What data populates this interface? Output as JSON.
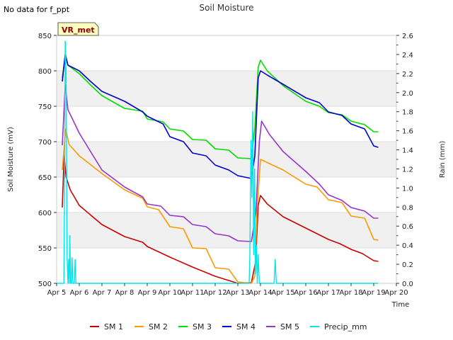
{
  "note": "No data for f_ppt",
  "chart_data": {
    "type": "line",
    "title": "Soil Moisture",
    "xlabel": "Time",
    "ylabel": "Soil Moisture (mV)",
    "y2label": "Rain (mm)",
    "tag": "VR_met",
    "x_ticks": [
      "Apr 5",
      "Apr 6",
      "Apr 7",
      "Apr 8",
      "Apr 9",
      "Apr 10",
      "Apr 11",
      "Apr 12",
      "Apr 13",
      "Apr 14",
      "Apr 15",
      "Apr 16",
      "Apr 17",
      "Apr 18",
      "Apr 19",
      "Apr 20"
    ],
    "xlim": [
      5,
      20
    ],
    "ylim": [
      500,
      850
    ],
    "y_ticks": [
      500,
      550,
      600,
      650,
      700,
      750,
      800,
      850
    ],
    "y2lim": [
      0,
      2.6
    ],
    "y2_ticks": [
      0.0,
      0.2,
      0.4,
      0.6,
      0.8,
      1.0,
      1.2,
      1.4,
      1.6,
      1.8,
      2.0,
      2.2,
      2.4,
      2.6
    ],
    "shaded_bands": [
      [
        550,
        600
      ],
      [
        650,
        700
      ],
      [
        750,
        800
      ]
    ],
    "legend_position": "bottom",
    "series": [
      {
        "name": "SM 1",
        "color": "#cc0000",
        "axis": "left",
        "points": [
          [
            5.25,
            607
          ],
          [
            5.33,
            680
          ],
          [
            5.42,
            650
          ],
          [
            5.6,
            632
          ],
          [
            6,
            610
          ],
          [
            7,
            583
          ],
          [
            8,
            566
          ],
          [
            8.8,
            558
          ],
          [
            9,
            552
          ],
          [
            10,
            537
          ],
          [
            11,
            523
          ],
          [
            12,
            510
          ],
          [
            13,
            500
          ],
          [
            13.6,
            501
          ],
          [
            13.78,
            530
          ],
          [
            13.9,
            610
          ],
          [
            14,
            624
          ],
          [
            14.3,
            612
          ],
          [
            15,
            594
          ],
          [
            16,
            578
          ],
          [
            16.5,
            570
          ],
          [
            17,
            562
          ],
          [
            17.5,
            556
          ],
          [
            18,
            548
          ],
          [
            18.5,
            542
          ],
          [
            19,
            532
          ],
          [
            19.2,
            531
          ]
        ]
      },
      {
        "name": "SM 2",
        "color": "#ff9900",
        "axis": "left",
        "points": [
          [
            5.25,
            660
          ],
          [
            5.4,
            718
          ],
          [
            5.55,
            696
          ],
          [
            6,
            680
          ],
          [
            7,
            655
          ],
          [
            8,
            632
          ],
          [
            8.8,
            620
          ],
          [
            9,
            608
          ],
          [
            9.5,
            604
          ],
          [
            10,
            580
          ],
          [
            10.6,
            577
          ],
          [
            11,
            550
          ],
          [
            11.6,
            549
          ],
          [
            12,
            522
          ],
          [
            12.6,
            520
          ],
          [
            13,
            502
          ],
          [
            13.6,
            500
          ],
          [
            13.75,
            510
          ],
          [
            13.85,
            605
          ],
          [
            14,
            675
          ],
          [
            15,
            660
          ],
          [
            16,
            640
          ],
          [
            16.5,
            636
          ],
          [
            17,
            618
          ],
          [
            17.6,
            614
          ],
          [
            18,
            595
          ],
          [
            18.6,
            592
          ],
          [
            19,
            562
          ],
          [
            19.2,
            561
          ]
        ]
      },
      {
        "name": "SM 3",
        "color": "#00dd00",
        "axis": "left",
        "points": [
          [
            5.25,
            790
          ],
          [
            5.38,
            822
          ],
          [
            5.5,
            808
          ],
          [
            6,
            796
          ],
          [
            6.5,
            780
          ],
          [
            7,
            765
          ],
          [
            8,
            747
          ],
          [
            8.8,
            743
          ],
          [
            9,
            732
          ],
          [
            9.7,
            728
          ],
          [
            10,
            718
          ],
          [
            10.6,
            715
          ],
          [
            11,
            703
          ],
          [
            11.6,
            702
          ],
          [
            12,
            690
          ],
          [
            12.6,
            688
          ],
          [
            13,
            677
          ],
          [
            13.6,
            676
          ],
          [
            13.75,
            720
          ],
          [
            13.9,
            805
          ],
          [
            14,
            815
          ],
          [
            14.3,
            800
          ],
          [
            15,
            779
          ],
          [
            16,
            757
          ],
          [
            16.6,
            750
          ],
          [
            17,
            741
          ],
          [
            17.6,
            738
          ],
          [
            18,
            729
          ],
          [
            18.6,
            724
          ],
          [
            19,
            714
          ],
          [
            19.2,
            714
          ]
        ]
      },
      {
        "name": "SM 4",
        "color": "#0000cc",
        "axis": "left",
        "points": [
          [
            5.25,
            785
          ],
          [
            5.38,
            824
          ],
          [
            5.5,
            808
          ],
          [
            6,
            800
          ],
          [
            6.5,
            785
          ],
          [
            7,
            771
          ],
          [
            8,
            757
          ],
          [
            8.8,
            742
          ],
          [
            9,
            736
          ],
          [
            9.7,
            725
          ],
          [
            10,
            707
          ],
          [
            10.6,
            700
          ],
          [
            11,
            684
          ],
          [
            11.6,
            680
          ],
          [
            12,
            667
          ],
          [
            12.6,
            660
          ],
          [
            13,
            652
          ],
          [
            13.6,
            648
          ],
          [
            13.75,
            680
          ],
          [
            13.9,
            790
          ],
          [
            14,
            800
          ],
          [
            14.3,
            794
          ],
          [
            15,
            781
          ],
          [
            16,
            762
          ],
          [
            16.6,
            755
          ],
          [
            17,
            742
          ],
          [
            17.6,
            737
          ],
          [
            18,
            725
          ],
          [
            18.6,
            718
          ],
          [
            19,
            694
          ],
          [
            19.2,
            692
          ]
        ]
      },
      {
        "name": "SM 5",
        "color": "#9933cc",
        "axis": "left",
        "points": [
          [
            5.25,
            695
          ],
          [
            5.38,
            780
          ],
          [
            5.5,
            745
          ],
          [
            5.7,
            732
          ],
          [
            6,
            712
          ],
          [
            6.5,
            686
          ],
          [
            7,
            660
          ],
          [
            8,
            636
          ],
          [
            8.8,
            622
          ],
          [
            9,
            612
          ],
          [
            9.6,
            609
          ],
          [
            10,
            596
          ],
          [
            10.6,
            594
          ],
          [
            11,
            583
          ],
          [
            11.6,
            580
          ],
          [
            12,
            570
          ],
          [
            12.6,
            567
          ],
          [
            13,
            560
          ],
          [
            13.6,
            559
          ],
          [
            13.8,
            600
          ],
          [
            13.95,
            700
          ],
          [
            14.05,
            729
          ],
          [
            14.4,
            710
          ],
          [
            15,
            686
          ],
          [
            16,
            658
          ],
          [
            16.6,
            640
          ],
          [
            17,
            625
          ],
          [
            17.6,
            617
          ],
          [
            18,
            607
          ],
          [
            18.6,
            602
          ],
          [
            19,
            592
          ],
          [
            19.2,
            592
          ]
        ]
      },
      {
        "name": "Precip_mm",
        "color": "#00e5ee",
        "axis": "right",
        "points": [
          [
            5,
            0
          ],
          [
            5.32,
            0
          ],
          [
            5.35,
            1.0
          ],
          [
            5.38,
            2.54
          ],
          [
            5.42,
            2.2
          ],
          [
            5.46,
            0.3
          ],
          [
            5.5,
            0
          ],
          [
            5.53,
            0.25
          ],
          [
            5.56,
            0
          ],
          [
            5.58,
            0.5
          ],
          [
            5.62,
            0
          ],
          [
            5.65,
            0
          ],
          [
            5.68,
            0.27
          ],
          [
            5.72,
            0
          ],
          [
            5.78,
            0
          ],
          [
            5.82,
            0.25
          ],
          [
            5.85,
            0
          ],
          [
            13.5,
            0
          ],
          [
            13.53,
            0.3
          ],
          [
            13.58,
            1.5
          ],
          [
            13.62,
            0.9
          ],
          [
            13.66,
            1.8
          ],
          [
            13.7,
            0.3
          ],
          [
            13.74,
            1.2
          ],
          [
            13.78,
            0.1
          ],
          [
            13.82,
            0.4
          ],
          [
            13.86,
            0
          ],
          [
            13.9,
            0.3
          ],
          [
            13.95,
            0
          ],
          [
            14.6,
            0
          ],
          [
            14.65,
            0.25
          ],
          [
            14.7,
            0
          ],
          [
            19.2,
            0
          ]
        ]
      }
    ]
  }
}
